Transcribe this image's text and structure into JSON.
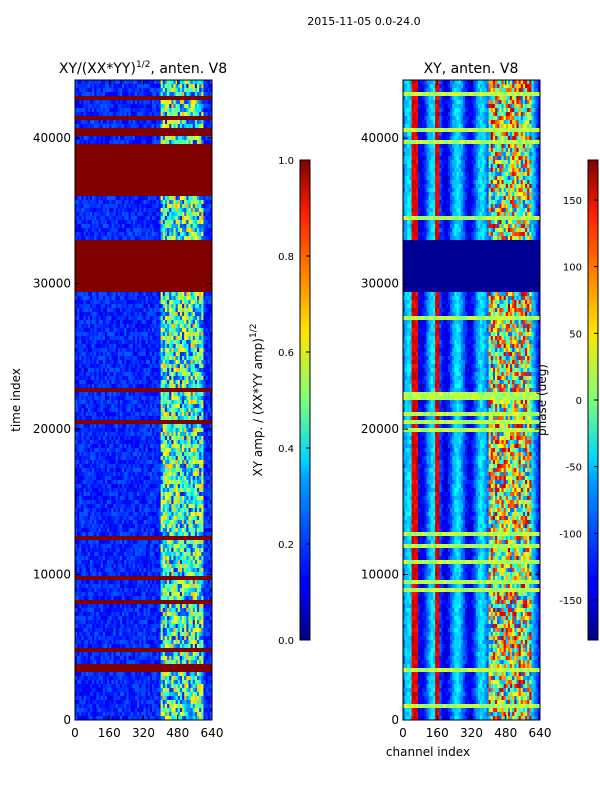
{
  "figure": {
    "suptitle": "2015-11-05 0.0-24.0"
  },
  "chart_data": [
    {
      "type": "heatmap",
      "title": "XY/(XX*YY)",
      "title_sup": "1/2",
      "title_suffix": ", anten. V8",
      "xlabel": "",
      "ylabel": "time index",
      "xlim": [
        0,
        640
      ],
      "ylim": [
        0,
        44000
      ],
      "xticks": [
        0,
        160,
        320,
        480,
        640
      ],
      "yticks": [
        0,
        10000,
        20000,
        30000,
        40000
      ],
      "colorbar": {
        "label": "XY amp. / (XX*YY amp)",
        "label_sup": "1/2",
        "range": [
          0.0,
          1.0
        ],
        "ticks": [
          "0.0",
          "0.2",
          "0.4",
          "0.6",
          "0.8",
          "1.0"
        ],
        "colormap": "jet"
      },
      "saturated_bands": [
        [
          29500,
          33000
        ],
        [
          36000,
          39500
        ],
        [
          40200,
          40600
        ]
      ],
      "active_channel_range": [
        400,
        600
      ]
    },
    {
      "type": "heatmap",
      "title": "XY, anten. V8",
      "xlabel": "channel index",
      "ylabel": "",
      "xlim": [
        0,
        640
      ],
      "ylim": [
        0,
        44000
      ],
      "xticks": [
        0,
        160,
        320,
        480,
        640
      ],
      "yticks": [
        0,
        10000,
        20000,
        30000,
        40000
      ],
      "colorbar": {
        "label": "phase (deg)",
        "range": [
          -180,
          180
        ],
        "ticks": [
          "-150",
          "-100",
          "-50",
          "0",
          "50",
          "100",
          "150"
        ],
        "colormap": "jet"
      },
      "low_phase_band": [
        29500,
        33000
      ],
      "active_channel_range": [
        400,
        600
      ]
    }
  ]
}
